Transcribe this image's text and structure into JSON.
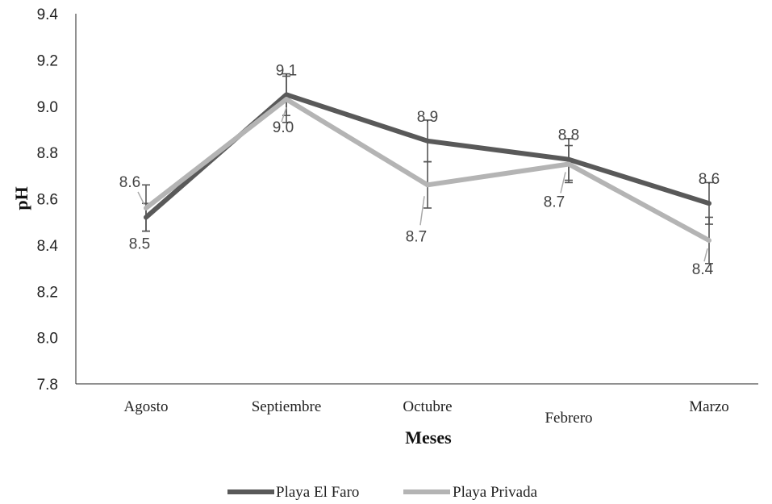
{
  "chart_data": {
    "type": "line",
    "xlabel": "Meses",
    "ylabel": "pH",
    "categories": [
      "Agosto",
      "Septiembre",
      "Octubre",
      "Febrero",
      "Marzo"
    ],
    "ylim": [
      7.8,
      9.4
    ],
    "yticks": [
      "7.8",
      "8.0",
      "8.2",
      "8.4",
      "8.6",
      "8.8",
      "9.0",
      "9.2",
      "9.4"
    ],
    "grid": false,
    "legend_position": "bottom",
    "series": [
      {
        "name": "Playa El Faro",
        "color": "#595959",
        "values": [
          8.52,
          9.05,
          8.85,
          8.77,
          8.58
        ],
        "error": [
          0.06,
          0.09,
          0.09,
          0.09,
          0.09
        ],
        "labels": [
          "8.5",
          "9.1",
          "8.9",
          "8.8",
          "8.6"
        ]
      },
      {
        "name": "Playa Privada",
        "color": "#b4b4b4",
        "values": [
          8.56,
          9.03,
          8.66,
          8.75,
          8.42
        ],
        "error": [
          0.1,
          0.1,
          0.1,
          0.08,
          0.1
        ],
        "labels": [
          "8.6",
          "9.0",
          "8.7",
          "8.7",
          "8.4"
        ]
      }
    ]
  }
}
